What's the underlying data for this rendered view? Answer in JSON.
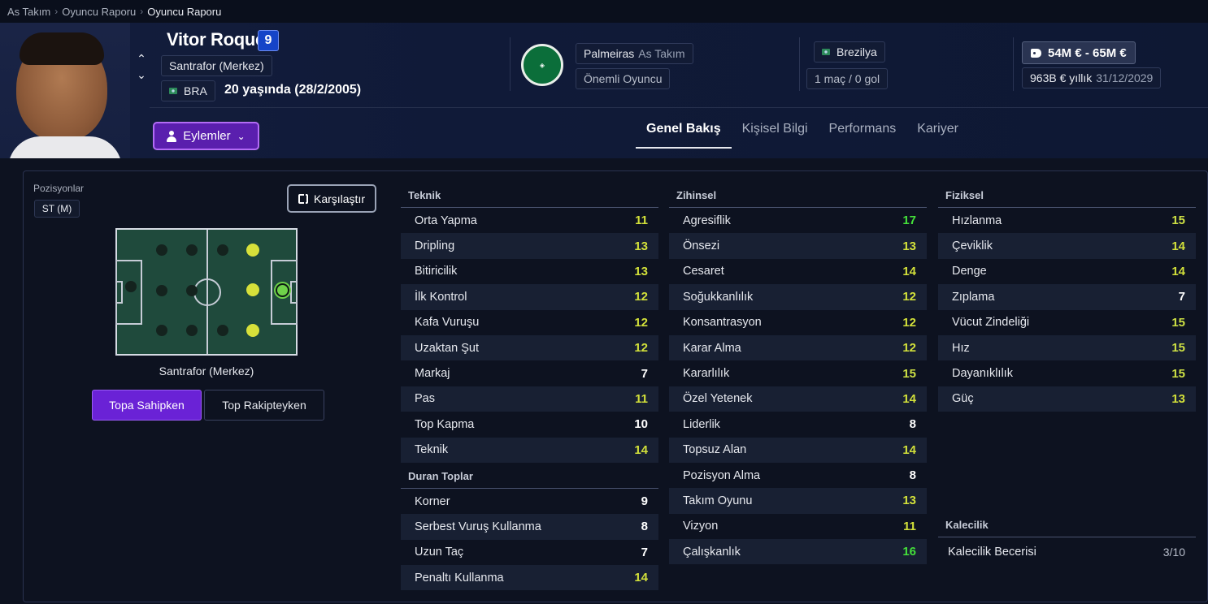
{
  "breadcrumb": {
    "items": [
      "As Takım",
      "Oyuncu Raporu",
      "Oyuncu Raporu"
    ]
  },
  "player": {
    "name": "Vitor Roque",
    "number": "9",
    "position": "Santrafor (Merkez)",
    "nationality_code": "BRA",
    "age_text": "20 yaşında (28/2/2005)"
  },
  "club": {
    "name": "Palmeiras",
    "squad": "As Takım",
    "status": "Önemli Oyuncu"
  },
  "nation": {
    "name": "Brezilya",
    "caps": "1 maç / 0 gol"
  },
  "contract": {
    "value_range": "54M € - 65M €",
    "wage": "963B € yıllık",
    "expiry": "31/12/2029"
  },
  "actions_label": "Eylemler",
  "tabs": [
    {
      "label": "Genel Bakış",
      "active": true
    },
    {
      "label": "Kişisel Bilgi",
      "active": false
    },
    {
      "label": "Performans",
      "active": false
    },
    {
      "label": "Kariyer",
      "active": false
    }
  ],
  "positions": {
    "label": "Pozisyonlar",
    "chip": "ST (M)",
    "compare_label": "Karşılaştır",
    "caption": "Santrafor (Merkez)",
    "toggle_on": "Topa Sahipken",
    "toggle_off": "Top Rakipteyken"
  },
  "attributes": {
    "technical": {
      "title": "Teknik",
      "items": [
        {
          "name": "Orta Yapma",
          "value": "11"
        },
        {
          "name": "Dripling",
          "value": "13"
        },
        {
          "name": "Bitiricilik",
          "value": "13"
        },
        {
          "name": "İlk Kontrol",
          "value": "12"
        },
        {
          "name": "Kafa Vuruşu",
          "value": "12"
        },
        {
          "name": "Uzaktan Şut",
          "value": "12"
        },
        {
          "name": "Markaj",
          "value": "7"
        },
        {
          "name": "Pas",
          "value": "11"
        },
        {
          "name": "Top Kapma",
          "value": "10"
        },
        {
          "name": "Teknik",
          "value": "14"
        }
      ]
    },
    "set_pieces": {
      "title": "Duran Toplar",
      "items": [
        {
          "name": "Korner",
          "value": "9"
        },
        {
          "name": "Serbest Vuruş Kullanma",
          "value": "8"
        },
        {
          "name": "Uzun Taç",
          "value": "7"
        },
        {
          "name": "Penaltı Kullanma",
          "value": "14"
        }
      ]
    },
    "mental": {
      "title": "Zihinsel",
      "items": [
        {
          "name": "Agresiflik",
          "value": "17"
        },
        {
          "name": "Önsezi",
          "value": "13"
        },
        {
          "name": "Cesaret",
          "value": "14"
        },
        {
          "name": "Soğukkanlılık",
          "value": "12"
        },
        {
          "name": "Konsantrasyon",
          "value": "12"
        },
        {
          "name": "Karar Alma",
          "value": "12"
        },
        {
          "name": "Kararlılık",
          "value": "15"
        },
        {
          "name": "Özel Yetenek",
          "value": "14"
        },
        {
          "name": "Liderlik",
          "value": "8"
        },
        {
          "name": "Topsuz Alan",
          "value": "14"
        },
        {
          "name": "Pozisyon Alma",
          "value": "8"
        },
        {
          "name": "Takım Oyunu",
          "value": "13"
        },
        {
          "name": "Vizyon",
          "value": "11"
        },
        {
          "name": "Çalışkanlık",
          "value": "16"
        }
      ]
    },
    "physical": {
      "title": "Fiziksel",
      "items": [
        {
          "name": "Hızlanma",
          "value": "15"
        },
        {
          "name": "Çeviklik",
          "value": "14"
        },
        {
          "name": "Denge",
          "value": "14"
        },
        {
          "name": "Zıplama",
          "value": "7"
        },
        {
          "name": "Vücut Zindeliği",
          "value": "15"
        },
        {
          "name": "Hız",
          "value": "15"
        },
        {
          "name": "Dayanıklılık",
          "value": "15"
        },
        {
          "name": "Güç",
          "value": "13"
        }
      ]
    },
    "goalkeeping": {
      "title": "Kalecilik",
      "items": [
        {
          "name": "Kalecilik Becerisi",
          "value": "3/10"
        }
      ]
    }
  },
  "colors": {
    "accent": "#6a22d6",
    "high": "#44e03a",
    "good": "#d2e03a",
    "low": "#ffffff"
  }
}
